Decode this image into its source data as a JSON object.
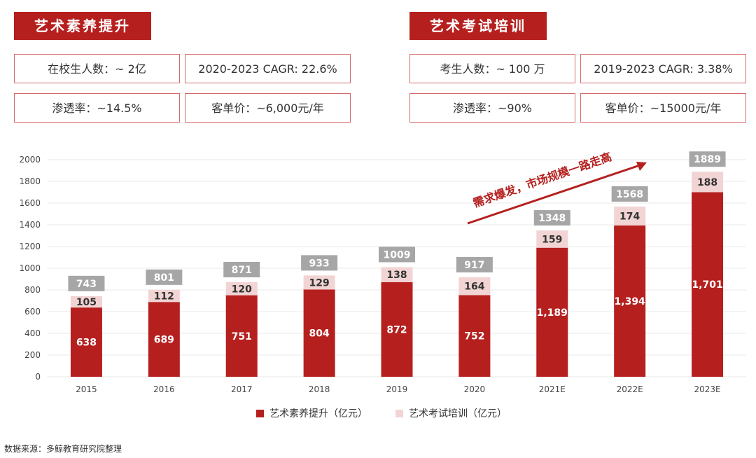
{
  "left_panel": {
    "title": "艺术素养提升",
    "stats": [
      "在校生人数：~ 2亿",
      "2020-2023 CAGR: 22.6%",
      "渗透率：~14.5%",
      "客单价：~6,000元/年"
    ]
  },
  "right_panel": {
    "title": "艺术考试培训",
    "stats": [
      "考生人数：~ 100 万",
      "2019-2023 CAGR: 3.38%",
      "渗透率：~90%",
      "客单价：~15000元/年"
    ]
  },
  "annotation": "需求爆发，市场规模一路走高",
  "source": "数据来源：多鲸教育研究院整理",
  "colors": {
    "primary": "#b5201f",
    "secondary": "#f2d4d4",
    "total_badge": "#a6a6a6"
  },
  "chart_data": {
    "type": "bar",
    "stacked": true,
    "categories": [
      "2015",
      "2016",
      "2017",
      "2018",
      "2019",
      "2020",
      "2021E",
      "2022E",
      "2023E"
    ],
    "series": [
      {
        "name": "艺术素养提升（亿元）",
        "values": [
          638,
          689,
          751,
          804,
          872,
          752,
          1189,
          1394,
          1701
        ]
      },
      {
        "name": "艺术考试培训（亿元）",
        "values": [
          105,
          112,
          120,
          129,
          138,
          164,
          159,
          174,
          188
        ]
      }
    ],
    "series_labels": [
      [
        "638",
        "689",
        "751",
        "804",
        "872",
        "752",
        "1,189",
        "1,394",
        "1,701"
      ],
      [
        "105",
        "112",
        "120",
        "129",
        "138",
        "164",
        "159",
        "174",
        "188"
      ]
    ],
    "totals": [
      743,
      801,
      871,
      933,
      1009,
      917,
      1348,
      1568,
      1889
    ],
    "y_ticks": [
      0,
      200,
      400,
      600,
      800,
      1000,
      1200,
      1400,
      1600,
      1800,
      2000
    ],
    "ylim": [
      0,
      2000
    ],
    "grid": true,
    "legend_position": "bottom"
  }
}
